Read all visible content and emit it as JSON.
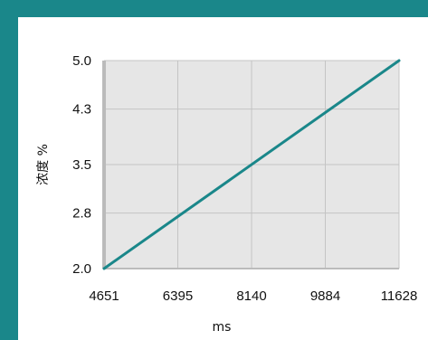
{
  "chart_data": {
    "type": "line",
    "title": "",
    "xlabel": "ms",
    "ylabel": "浓度 %",
    "x_ticks": [
      "4651",
      "6395",
      "8140",
      "9884",
      "11628"
    ],
    "y_ticks": [
      "2.0",
      "2.8",
      "3.5",
      "4.3",
      "5.0"
    ],
    "xlim": [
      4651,
      11628
    ],
    "ylim": [
      2.0,
      5.0
    ],
    "grid": true,
    "series": [
      {
        "x": [
          4651,
          11628
        ],
        "y": [
          2.0,
          5.0
        ]
      }
    ],
    "colors": {
      "line": "#1a878a",
      "plot_bg": "#e6e6e6",
      "grid": "#c4c4c4",
      "frame": "#1a878a",
      "axis": "#bbbbbb"
    }
  }
}
